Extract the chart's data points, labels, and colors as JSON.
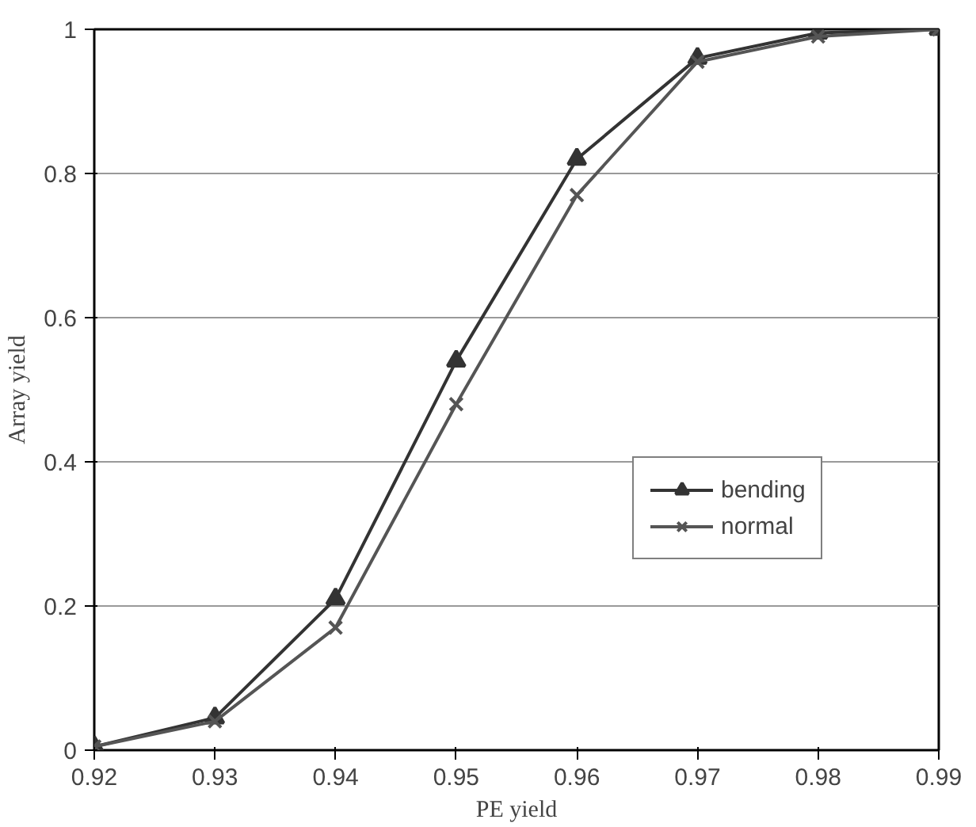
{
  "chart_data": {
    "type": "line",
    "xlabel": "PE yield",
    "ylabel": "Array yield",
    "x": [
      0.92,
      0.93,
      0.94,
      0.95,
      0.96,
      0.97,
      0.98,
      0.99
    ],
    "series": [
      {
        "name": "bending",
        "color": "#333333",
        "marker": "triangle",
        "values": [
          0.005,
          0.045,
          0.21,
          0.54,
          0.82,
          0.96,
          0.995,
          1
        ]
      },
      {
        "name": "normal",
        "color": "#555555",
        "marker": "cross",
        "values": [
          0.005,
          0.04,
          0.17,
          0.48,
          0.77,
          0.955,
          0.99,
          1
        ]
      }
    ],
    "xlim": [
      0.92,
      0.99
    ],
    "ylim": [
      0,
      1
    ],
    "xticks": [
      0.92,
      0.93,
      0.94,
      0.95,
      0.96,
      0.97,
      0.98,
      0.99
    ],
    "yticks": [
      0,
      0.2,
      0.4,
      0.6,
      0.8,
      1
    ],
    "grid": "y",
    "legend": "right",
    "line_style": "solid"
  }
}
